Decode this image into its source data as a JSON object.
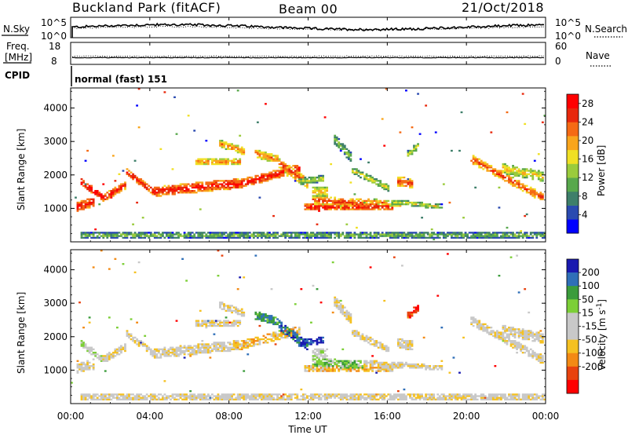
{
  "header": {
    "station": "Buckland Park (fitACF)",
    "beam": "Beam 00",
    "date": "21/Oct/2018"
  },
  "strip_panels": {
    "nsky_label": "N.Sky",
    "nsearch_label": "N.Search",
    "noise_ticks": [
      "10^5",
      "10^0"
    ],
    "freq_label_line1": "Freq.",
    "freq_label_line2": "[MHz]",
    "freq_ticks": [
      "18",
      "8"
    ],
    "nave_label": "Nave",
    "nave_ticks": [
      "60",
      "0"
    ],
    "cpid_label": "CPID",
    "cpid_value": "normal (fast) 151"
  },
  "colors": {
    "power": [
      "#0000ff",
      "#2a4ab0",
      "#3e7f6a",
      "#58a84c",
      "#9acb3c",
      "#f0e024",
      "#f9a51c",
      "#f56a14",
      "#e8280c",
      "#ff0000"
    ],
    "velocity": [
      "#ff0000",
      "#e8420e",
      "#f38a14",
      "#f5c121",
      "#c8c8c8",
      "#c8c8c8",
      "#7ccf37",
      "#3b9c3b",
      "#2f6fb8",
      "#1a1ab0"
    ]
  },
  "chart_data": [
    {
      "type": "heatmap",
      "name": "power",
      "ylabel": "Slant Range [km]",
      "yticks": [
        1000,
        2000,
        3000,
        4000
      ],
      "ylim": [
        0,
        4600
      ],
      "xlim_hours": [
        0,
        24
      ],
      "colorbar": {
        "label": "Power [dB]",
        "ticks": [
          4,
          8,
          12,
          16,
          20,
          24,
          28
        ],
        "range": [
          0,
          30
        ]
      }
    },
    {
      "type": "heatmap",
      "name": "velocity",
      "ylabel": "Slant Range [km]",
      "yticks": [
        1000,
        2000,
        3000,
        4000
      ],
      "ylim": [
        0,
        4600
      ],
      "xlim_hours": [
        0,
        24
      ],
      "colorbar": {
        "label_text": "Velocity [m s",
        "label_sup": "-1",
        "label_end": "]",
        "ticks": [
          200,
          100,
          50,
          15,
          -15,
          -50,
          -100,
          -200
        ]
      }
    }
  ],
  "xaxis": {
    "ticks": [
      "00:00",
      "04:00",
      "08:00",
      "12:00",
      "16:00",
      "20:00",
      "00:00"
    ],
    "label": "Time UT"
  }
}
